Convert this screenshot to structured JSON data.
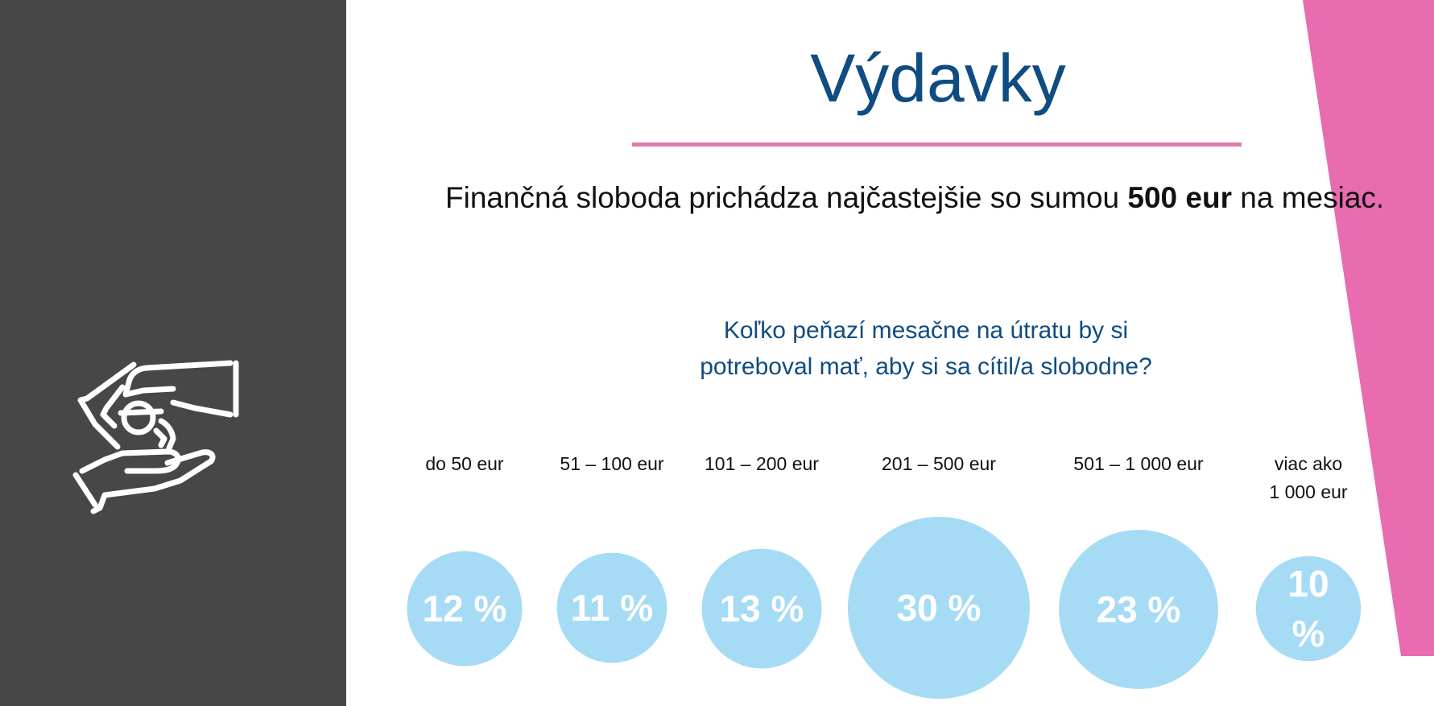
{
  "slide": {
    "title": "Výdavky",
    "subtitle_before": "Finančná sloboda prichádza najčastejšie so sumou ",
    "subtitle_bold": "500 eur",
    "subtitle_after": " na mesiac.",
    "question_line1": "Koľko peňazí mesačne na útratu by si",
    "question_line2": "potreboval mať, aby si sa cítil/a slobodne?",
    "icon": "hands-coin-icon"
  },
  "colors": {
    "sidebar": "#474747",
    "accent_pink": "#e86caf",
    "title_blue": "#0f4c81",
    "bubble": "#a6dbf5"
  },
  "chart_data": {
    "type": "bubble",
    "categories": [
      [
        "do 50 eur"
      ],
      [
        "51 – 100 eur"
      ],
      [
        "101 – 200 eur"
      ],
      [
        "201 – 500 eur"
      ],
      [
        "501 – 1 000 eur"
      ],
      [
        "viac ako",
        "1 000 eur"
      ]
    ],
    "values": [
      12,
      11,
      13,
      30,
      23,
      10
    ],
    "value_labels": [
      [
        "12 %"
      ],
      [
        "11 %"
      ],
      [
        "13 %"
      ],
      [
        "30 %"
      ],
      [
        "23 %"
      ],
      [
        "10",
        "%"
      ]
    ],
    "unit": "%"
  }
}
